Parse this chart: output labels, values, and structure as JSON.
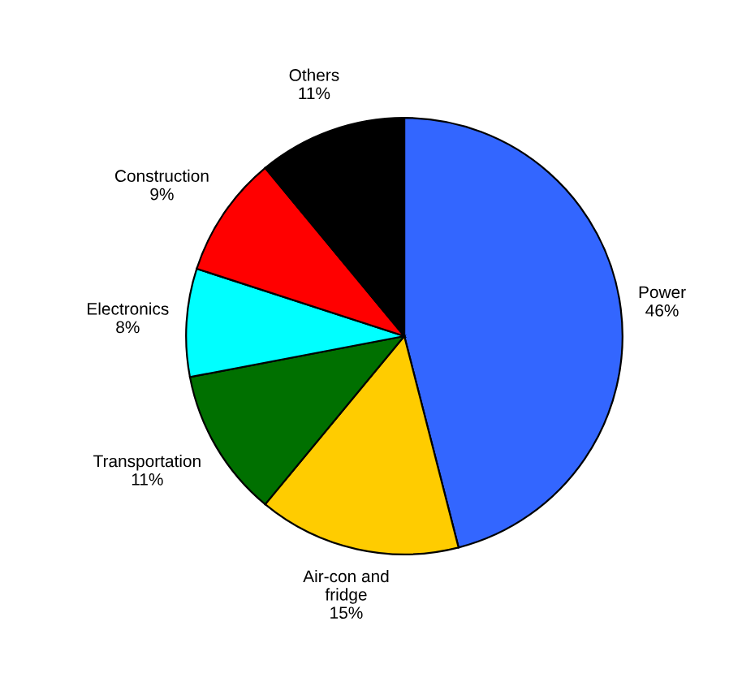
{
  "chart_data": {
    "type": "pie",
    "categories": [
      "Power",
      "Air-con and\nfridge",
      "Transportation",
      "Electronics",
      "Construction",
      "Others"
    ],
    "values": [
      46,
      15,
      11,
      8,
      9,
      11
    ],
    "value_labels": [
      "46%",
      "15%",
      "11%",
      "8%",
      "9%",
      "11%"
    ],
    "colors": [
      "#3366ff",
      "#ffcc00",
      "#007000",
      "#00ffff",
      "#ff0000",
      "#000000"
    ],
    "legend": false
  }
}
